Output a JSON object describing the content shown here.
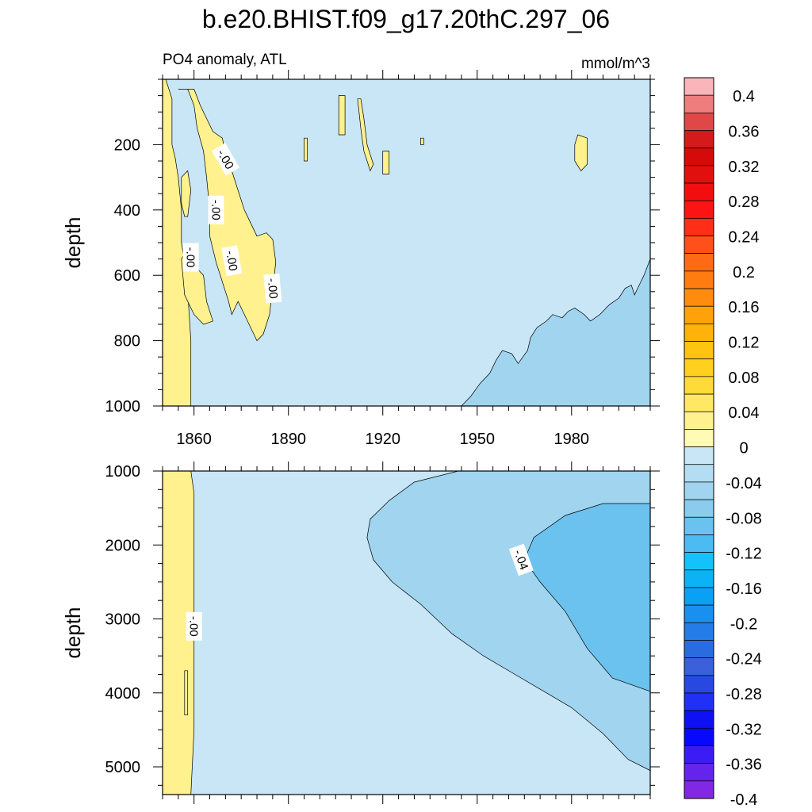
{
  "chart_data": {
    "type": "heatmap",
    "title": "b.e20.BHIST.f09_g17.20thC.297_06",
    "subtitle_left": "PO4 anomaly, ATL",
    "units": "mmol/m^3",
    "panels": [
      {
        "name": "upper",
        "ylabel": "depth",
        "xlim": [
          1850,
          2005
        ],
        "ylim": [
          0,
          1000
        ],
        "y_reversed": true,
        "xticks": [
          1860,
          1890,
          1920,
          1950,
          1980
        ],
        "yticks": [
          200,
          400,
          600,
          800,
          1000
        ],
        "background_level": -0.02,
        "regions": [
          {
            "level": 0.02,
            "poly": [
              [
                1850,
                0
              ],
              [
                1851,
                0
              ],
              [
                1853,
                60
              ],
              [
                1853,
                200
              ],
              [
                1854,
                240
              ],
              [
                1855,
                300
              ],
              [
                1856,
                400
              ],
              [
                1856,
                500
              ],
              [
                1857,
                560
              ],
              [
                1858,
                650
              ],
              [
                1859,
                800
              ],
              [
                1859,
                1000
              ],
              [
                1850,
                1000
              ]
            ]
          },
          {
            "level": 0.02,
            "poly": [
              [
                1855,
                30
              ],
              [
                1858,
                30
              ],
              [
                1860,
                80
              ],
              [
                1861,
                150
              ],
              [
                1863,
                220
              ],
              [
                1864,
                300
              ],
              [
                1865,
                400
              ],
              [
                1865,
                480
              ],
              [
                1867,
                560
              ],
              [
                1869,
                620
              ],
              [
                1871,
                680
              ],
              [
                1872,
                720
              ],
              [
                1874,
                680
              ],
              [
                1876,
                720
              ],
              [
                1878,
                760
              ],
              [
                1880,
                800
              ],
              [
                1882,
                780
              ],
              [
                1884,
                720
              ],
              [
                1885,
                640
              ],
              [
                1886,
                560
              ],
              [
                1885,
                490
              ],
              [
                1883,
                470
              ],
              [
                1880,
                480
              ],
              [
                1878,
                440
              ],
              [
                1876,
                400
              ],
              [
                1874,
                340
              ],
              [
                1872,
                280
              ],
              [
                1870,
                230
              ],
              [
                1869,
                180
              ],
              [
                1866,
                160
              ],
              [
                1864,
                120
              ],
              [
                1862,
                80
              ],
              [
                1860,
                30
              ]
            ]
          },
          {
            "level": 0.02,
            "poly": [
              [
                1856,
                550
              ],
              [
                1858,
                520
              ],
              [
                1860,
                570
              ],
              [
                1863,
                600
              ],
              [
                1864,
                680
              ],
              [
                1866,
                740
              ],
              [
                1863,
                750
              ],
              [
                1860,
                720
              ],
              [
                1857,
                660
              ]
            ]
          },
          {
            "level": 0.02,
            "poly": [
              [
                1856,
                300
              ],
              [
                1858,
                280
              ],
              [
                1859,
                340
              ],
              [
                1858,
                420
              ],
              [
                1857,
                420
              ],
              [
                1856,
                380
              ]
            ]
          },
          {
            "level": 0.02,
            "poly": [
              [
                1906,
                50
              ],
              [
                1908,
                50
              ],
              [
                1908,
                170
              ],
              [
                1906,
                170
              ]
            ]
          },
          {
            "level": 0.02,
            "poly": [
              [
                1912,
                60
              ],
              [
                1913,
                60
              ],
              [
                1914,
                120
              ],
              [
                1915,
                200
              ],
              [
                1917,
                260
              ],
              [
                1916,
                280
              ],
              [
                1914,
                220
              ],
              [
                1913,
                150
              ]
            ]
          },
          {
            "level": 0.02,
            "poly": [
              [
                1895,
                180
              ],
              [
                1896,
                180
              ],
              [
                1896,
                250
              ],
              [
                1895,
                250
              ]
            ]
          },
          {
            "level": 0.02,
            "poly": [
              [
                1920,
                220
              ],
              [
                1922,
                220
              ],
              [
                1922,
                290
              ],
              [
                1920,
                290
              ]
            ]
          },
          {
            "level": 0.02,
            "poly": [
              [
                1932,
                180
              ],
              [
                1933,
                180
              ],
              [
                1933,
                200
              ],
              [
                1932,
                200
              ]
            ]
          },
          {
            "level": 0.02,
            "poly": [
              [
                1982,
                170
              ],
              [
                1985,
                180
              ],
              [
                1985,
                260
              ],
              [
                1983,
                280
              ],
              [
                1981,
                250
              ],
              [
                1981,
                200
              ]
            ]
          },
          {
            "level": -0.06,
            "poly": [
              [
                1945,
                1000
              ],
              [
                1948,
                970
              ],
              [
                1951,
                930
              ],
              [
                1954,
                900
              ],
              [
                1956,
                860
              ],
              [
                1958,
                830
              ],
              [
                1961,
                840
              ],
              [
                1963,
                870
              ],
              [
                1966,
                830
              ],
              [
                1967,
                790
              ],
              [
                1969,
                760
              ],
              [
                1972,
                740
              ],
              [
                1974,
                720
              ],
              [
                1977,
                730
              ],
              [
                1979,
                710
              ],
              [
                1981,
                700
              ],
              [
                1984,
                720
              ],
              [
                1986,
                740
              ],
              [
                1989,
                720
              ],
              [
                1992,
                690
              ],
              [
                1995,
                670
              ],
              [
                1997,
                640
              ],
              [
                1999,
                630
              ],
              [
                2000,
                660
              ],
              [
                2002,
                620
              ],
              [
                2003,
                600
              ],
              [
                2005,
                550
              ],
              [
                2005,
                1000
              ]
            ]
          }
        ],
        "contour_labels": [
          {
            "text": "-.00",
            "x": 1870,
            "y": 245,
            "angle": 60
          },
          {
            "text": "-.00",
            "x": 1867,
            "y": 400,
            "angle": 90
          },
          {
            "text": "-.00",
            "x": 1859,
            "y": 545,
            "angle": 90
          },
          {
            "text": "-.00",
            "x": 1872,
            "y": 555,
            "angle": 80
          },
          {
            "text": "-.00",
            "x": 1885,
            "y": 640,
            "angle": 85
          }
        ]
      },
      {
        "name": "lower",
        "ylabel": "depth",
        "xlim": [
          1850,
          2005
        ],
        "ylim": [
          1000,
          5375
        ],
        "y_reversed": true,
        "xticks": [
          1860,
          1890,
          1920,
          1950,
          1980
        ],
        "yticks": [
          1000,
          2000,
          3000,
          4000,
          5000
        ],
        "background_level": -0.02,
        "regions": [
          {
            "level": 0.02,
            "poly": [
              [
                1850,
                1000
              ],
              [
                1859,
                1000
              ],
              [
                1860,
                1300
              ],
              [
                1860,
                1800
              ],
              [
                1860,
                2500
              ],
              [
                1860,
                3500
              ],
              [
                1860,
                4500
              ],
              [
                1859,
                5375
              ],
              [
                1850,
                5375
              ]
            ]
          },
          {
            "level": -0.06,
            "poly": [
              [
                1944,
                1000
              ],
              [
                1930,
                1150
              ],
              [
                1922,
                1400
              ],
              [
                1916,
                1650
              ],
              [
                1915,
                1900
              ],
              [
                1917,
                2200
              ],
              [
                1923,
                2500
              ],
              [
                1932,
                2800
              ],
              [
                1942,
                3200
              ],
              [
                1952,
                3500
              ],
              [
                1962,
                3750
              ],
              [
                1970,
                3950
              ],
              [
                1980,
                4200
              ],
              [
                1990,
                4550
              ],
              [
                1998,
                4900
              ],
              [
                2005,
                5050
              ],
              [
                2005,
                1000
              ]
            ]
          },
          {
            "level": -0.1,
            "poly": [
              [
                2005,
                1440
              ],
              [
                1990,
                1440
              ],
              [
                1978,
                1600
              ],
              [
                1968,
                1900
              ],
              [
                1965,
                2200
              ],
              [
                1970,
                2500
              ],
              [
                1978,
                2900
              ],
              [
                1985,
                3400
              ],
              [
                1993,
                3800
              ],
              [
                2005,
                3980
              ]
            ]
          },
          {
            "level": 0.02,
            "poly": [
              [
                1857,
                3700
              ],
              [
                1858,
                3700
              ],
              [
                1858,
                4300
              ],
              [
                1857,
                4300
              ]
            ]
          }
        ],
        "contour_labels": [
          {
            "text": "-.00",
            "x": 1860,
            "y": 3100,
            "angle": 90
          },
          {
            "text": "-.04",
            "x": 1964,
            "y": 2200,
            "angle": 70
          }
        ]
      }
    ],
    "colorbar": {
      "levels": [
        0.4,
        0.36,
        0.32,
        0.28,
        0.24,
        0.2,
        0.16,
        0.12,
        0.08,
        0.04,
        0,
        -0.04,
        -0.08,
        -0.12,
        -0.16,
        -0.2,
        -0.24,
        -0.28,
        -0.32,
        -0.36,
        -0.4
      ],
      "labels": [
        "0.4",
        "0.36",
        "0.32",
        "0.28",
        "0.24",
        "0.2",
        "0.16",
        "0.12",
        "0.08",
        "0.04",
        "0",
        "-0.04",
        "-0.08",
        "-0.12",
        "-0.16",
        "-0.2",
        "-0.24",
        "-0.28",
        "-0.32",
        "-0.36",
        "-0.4"
      ],
      "colors": [
        "#f9b5b9",
        "#ef7d7d",
        "#e04848",
        "#d41a1a",
        "#d50a0a",
        "#e20f0f",
        "#f20e0e",
        "#fc1414",
        "#fe2e18",
        "#fe5018",
        "#ff6b14",
        "#ff7c10",
        "#ff8c0e",
        "#ffa20a",
        "#ffb20a",
        "#ffc412",
        "#ffd01e",
        "#ffdb3a",
        "#ffe864",
        "#fff18e",
        "#fffab4",
        "#c8e6f6",
        "#b4dcf2",
        "#a0d4ef",
        "#8acbee",
        "#6cc2ef",
        "#4cbbf3",
        "#14c2fa",
        "#0cb2f5",
        "#0aa1f5",
        "#1890f0",
        "#247ce8",
        "#2a6ce0",
        "#3a60dc",
        "#2848e0",
        "#2030f4",
        "#1010f4",
        "#0808ff",
        "#3c1cf4",
        "#6424ec",
        "#8028e4"
      ]
    }
  }
}
